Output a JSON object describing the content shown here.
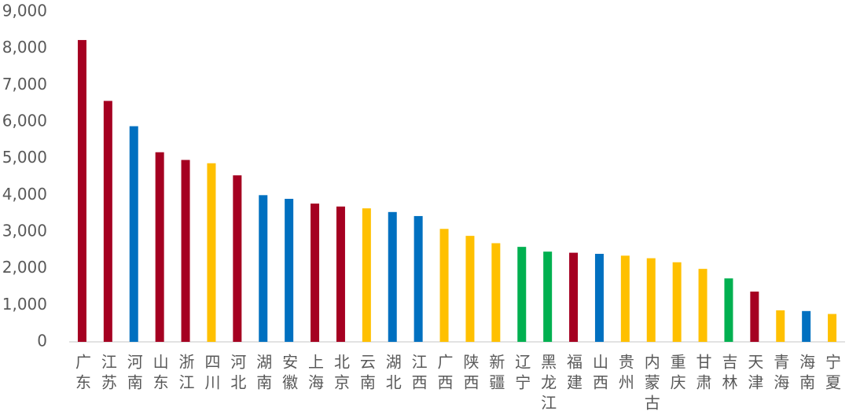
{
  "chart_data": {
    "type": "bar",
    "categories": [
      "广东",
      "江苏",
      "河南",
      "山东",
      "浙江",
      "四川",
      "河北",
      "湖南",
      "安徽",
      "上海",
      "北京",
      "云南",
      "湖北",
      "江西",
      "广西",
      "陕西",
      "新疆",
      "辽宁",
      "黑龙江",
      "福建",
      "山西",
      "贵州",
      "内蒙古",
      "重庆",
      "甘肃",
      "吉林",
      "天津",
      "青海",
      "海南",
      "宁夏"
    ],
    "values": [
      8230,
      6570,
      5880,
      5170,
      4960,
      4870,
      4540,
      4000,
      3900,
      3770,
      3690,
      3640,
      3540,
      3430,
      3080,
      2890,
      2690,
      2590,
      2460,
      2430,
      2400,
      2350,
      2280,
      2170,
      1990,
      1730,
      1370,
      860,
      840,
      760
    ],
    "colors": [
      "#a50021",
      "#a50021",
      "#0070c0",
      "#a50021",
      "#a50021",
      "#ffc000",
      "#a50021",
      "#0070c0",
      "#0070c0",
      "#a50021",
      "#a50021",
      "#ffc000",
      "#0070c0",
      "#0070c0",
      "#ffc000",
      "#ffc000",
      "#ffc000",
      "#00b050",
      "#00b050",
      "#a50021",
      "#0070c0",
      "#ffc000",
      "#ffc000",
      "#ffc000",
      "#ffc000",
      "#00b050",
      "#a50021",
      "#ffc000",
      "#0070c0",
      "#ffc000"
    ],
    "ylim": [
      0,
      9000
    ],
    "yticks": [
      0,
      {
        "value": 1000,
        "label": "1,000"
      },
      {
        "value": 2000,
        "label": "2,000"
      },
      {
        "value": 3000,
        "label": "3,000"
      },
      {
        "value": 4000,
        "label": "4,000"
      },
      {
        "value": 5000,
        "label": "5,000"
      },
      {
        "value": 6000,
        "label": "6,000"
      },
      {
        "value": 7000,
        "label": "7,000"
      },
      {
        "value": 8000,
        "label": "8,000"
      },
      {
        "value": 9000,
        "label": "9,000"
      }
    ],
    "grid": false
  }
}
